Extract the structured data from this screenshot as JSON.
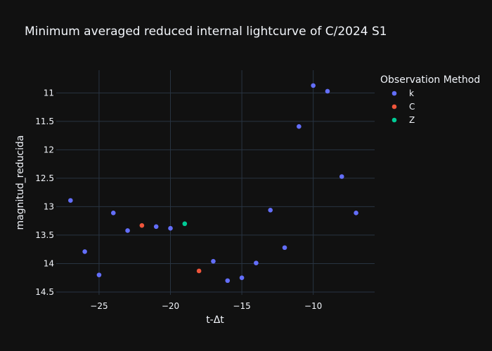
{
  "chart_data": {
    "type": "scatter",
    "title": "Minimum averaged reduced internal lightcurve of C/2024 S1",
    "xlabel": "t-Δt",
    "ylabel": "magnitud_reducida",
    "xlim": [
      -28,
      -5.7
    ],
    "ylim": [
      14.55,
      10.6
    ],
    "y_reversed": true,
    "x_ticks": [
      -25,
      -20,
      -15,
      -10
    ],
    "x_tick_labels": [
      "−25",
      "−20",
      "−15",
      "−10"
    ],
    "y_ticks": [
      11,
      11.5,
      12,
      12.5,
      13,
      13.5,
      14,
      14.5
    ],
    "y_tick_labels": [
      "11",
      "11.5",
      "12",
      "12.5",
      "13",
      "13.5",
      "14",
      "14.5"
    ],
    "legend_title": "Observation Method",
    "legend_position": "top-right",
    "grid": true,
    "series": [
      {
        "name": "k",
        "color": "#636efa",
        "points": [
          [
            -27,
            12.89
          ],
          [
            -26,
            13.79
          ],
          [
            -25,
            14.2
          ],
          [
            -24,
            13.11
          ],
          [
            -23,
            13.42
          ],
          [
            -21,
            13.35
          ],
          [
            -20,
            13.38
          ],
          [
            -17,
            13.96
          ],
          [
            -16,
            14.3
          ],
          [
            -15,
            14.25
          ],
          [
            -14,
            13.99
          ],
          [
            -13,
            13.06
          ],
          [
            -12,
            13.72
          ],
          [
            -11,
            11.59
          ],
          [
            -10,
            10.87
          ],
          [
            -9,
            10.97
          ],
          [
            -8,
            12.47
          ],
          [
            -7,
            13.11
          ]
        ]
      },
      {
        "name": "C",
        "color": "#ef553b",
        "points": [
          [
            -22,
            13.33
          ],
          [
            -18,
            14.13
          ]
        ]
      },
      {
        "name": "Z",
        "color": "#00cc96",
        "points": [
          [
            -19,
            13.3
          ]
        ]
      }
    ]
  }
}
